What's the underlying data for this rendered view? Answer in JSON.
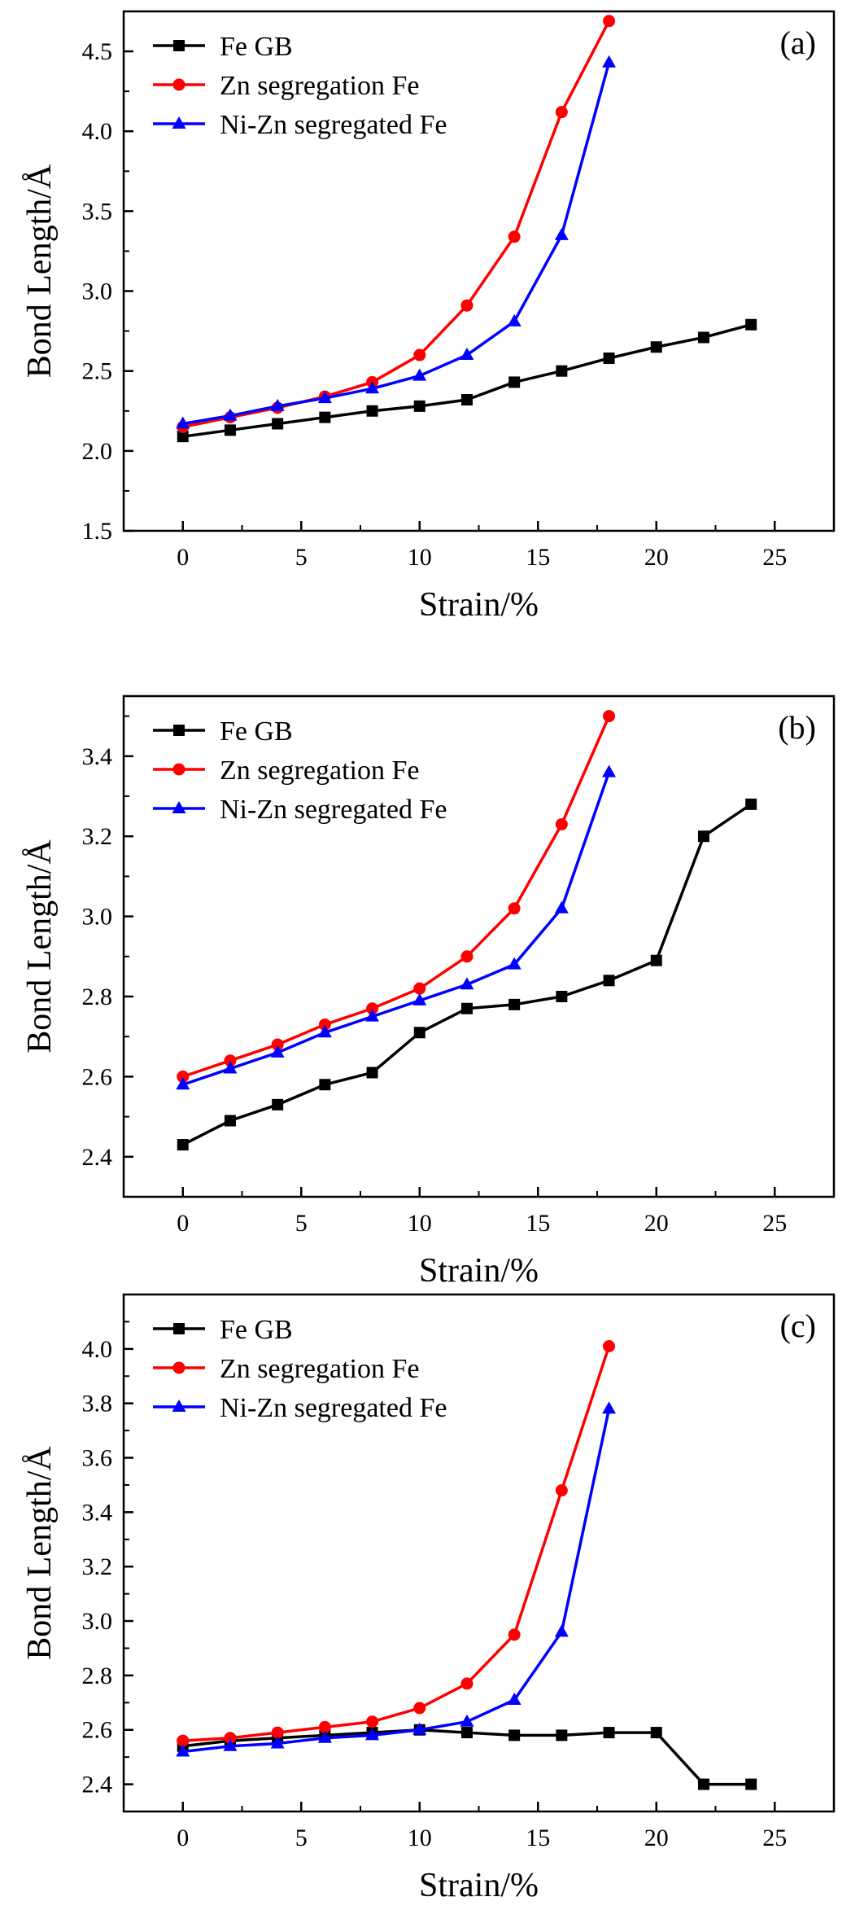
{
  "colors": {
    "fe_gb": "#000000",
    "zn_seg": "#ff0000",
    "nizn_seg": "#0000ff",
    "axis": "#000000",
    "background": "#ffffff"
  },
  "legend": [
    "Fe GB",
    "Zn segregation  Fe",
    "Ni-Zn segregated Fe"
  ],
  "chart_data": [
    {
      "type": "line",
      "panel_label": "(a)",
      "xlabel": "Strain/%",
      "ylabel": "Bond Length/Å",
      "xlim": [
        -2.5,
        27.5
      ],
      "ylim": [
        1.5,
        4.75
      ],
      "xticks": [
        0,
        5,
        10,
        15,
        20,
        25
      ],
      "yticks": [
        1.5,
        2.0,
        2.5,
        3.0,
        3.5,
        4.0,
        4.5
      ],
      "ytick_labels": [
        "1.5",
        "2.0",
        "2.5",
        "3.0",
        "3.5",
        "4.0",
        "4.5"
      ],
      "legend_position": "top-left",
      "series": [
        {
          "name": "Fe GB",
          "marker": "square",
          "color": "#000000",
          "x": [
            0,
            2,
            4,
            6,
            8,
            10,
            12,
            14,
            16,
            18,
            20,
            22,
            24
          ],
          "y": [
            2.09,
            2.13,
            2.17,
            2.21,
            2.25,
            2.28,
            2.32,
            2.43,
            2.5,
            2.58,
            2.65,
            2.71,
            2.79
          ]
        },
        {
          "name": "Zn segregation  Fe",
          "marker": "circle",
          "color": "#ff0000",
          "x": [
            0,
            2,
            4,
            6,
            8,
            10,
            12,
            14,
            16,
            18
          ],
          "y": [
            2.15,
            2.21,
            2.27,
            2.34,
            2.43,
            2.6,
            2.91,
            3.34,
            4.12,
            4.69
          ]
        },
        {
          "name": "Ni-Zn segregated Fe",
          "marker": "triangle",
          "color": "#0000ff",
          "x": [
            0,
            2,
            4,
            6,
            8,
            10,
            12,
            14,
            16,
            18
          ],
          "y": [
            2.17,
            2.22,
            2.28,
            2.33,
            2.39,
            2.47,
            2.6,
            2.81,
            3.35,
            4.43
          ]
        }
      ]
    },
    {
      "type": "line",
      "panel_label": "(b)",
      "xlabel": "Strain/%",
      "ylabel": "Bond Length/Å",
      "xlim": [
        -2.5,
        27.5
      ],
      "ylim": [
        2.3,
        3.55
      ],
      "xticks": [
        0,
        5,
        10,
        15,
        20,
        25
      ],
      "yticks": [
        2.4,
        2.6,
        2.8,
        3.0,
        3.2,
        3.4
      ],
      "ytick_labels": [
        "2.4",
        "2.6",
        "2.8",
        "3.0",
        "3.2",
        "3.4"
      ],
      "legend_position": "top-left",
      "series": [
        {
          "name": "Fe GB",
          "marker": "square",
          "color": "#000000",
          "x": [
            0,
            2,
            4,
            6,
            8,
            10,
            12,
            14,
            16,
            18,
            20,
            22,
            24
          ],
          "y": [
            2.43,
            2.49,
            2.53,
            2.58,
            2.61,
            2.71,
            2.77,
            2.78,
            2.8,
            2.84,
            2.89,
            3.2,
            3.28
          ]
        },
        {
          "name": "Zn segregation  Fe",
          "marker": "circle",
          "color": "#ff0000",
          "x": [
            0,
            2,
            4,
            6,
            8,
            10,
            12,
            14,
            16,
            18
          ],
          "y": [
            2.6,
            2.64,
            2.68,
            2.73,
            2.77,
            2.82,
            2.9,
            3.02,
            3.23,
            3.5
          ]
        },
        {
          "name": "Ni-Zn segregated Fe",
          "marker": "triangle",
          "color": "#0000ff",
          "x": [
            0,
            2,
            4,
            6,
            8,
            10,
            12,
            14,
            16,
            18
          ],
          "y": [
            2.58,
            2.62,
            2.66,
            2.71,
            2.75,
            2.79,
            2.83,
            2.88,
            3.02,
            3.36
          ]
        }
      ]
    },
    {
      "type": "line",
      "panel_label": "(c)",
      "xlabel": "Strain/%",
      "ylabel": "Bond Length/Å",
      "xlim": [
        -2.5,
        27.5
      ],
      "ylim": [
        2.3,
        4.2
      ],
      "xticks": [
        0,
        5,
        10,
        15,
        20,
        25
      ],
      "yticks": [
        2.4,
        2.6,
        2.8,
        3.0,
        3.2,
        3.4,
        3.6,
        3.8,
        4.0
      ],
      "ytick_labels": [
        "2.4",
        "2.6",
        "2.8",
        "3.0",
        "3.2",
        "3.4",
        "3.6",
        "3.8",
        "4.0"
      ],
      "legend_position": "top-left",
      "series": [
        {
          "name": "Fe GB",
          "marker": "square",
          "color": "#000000",
          "x": [
            0,
            2,
            4,
            6,
            8,
            10,
            12,
            14,
            16,
            18,
            20,
            22,
            24
          ],
          "y": [
            2.54,
            2.56,
            2.57,
            2.58,
            2.59,
            2.6,
            2.59,
            2.58,
            2.58,
            2.59,
            2.59,
            2.4,
            2.4
          ]
        },
        {
          "name": "Zn segregation  Fe",
          "marker": "circle",
          "color": "#ff0000",
          "x": [
            0,
            2,
            4,
            6,
            8,
            10,
            12,
            14,
            16,
            18
          ],
          "y": [
            2.56,
            2.57,
            2.59,
            2.61,
            2.63,
            2.68,
            2.77,
            2.95,
            3.48,
            4.01
          ]
        },
        {
          "name": "Ni-Zn segregated Fe",
          "marker": "triangle",
          "color": "#0000ff",
          "x": [
            0,
            2,
            4,
            6,
            8,
            10,
            12,
            14,
            16,
            18
          ],
          "y": [
            2.52,
            2.54,
            2.55,
            2.57,
            2.58,
            2.6,
            2.63,
            2.71,
            2.96,
            3.78
          ]
        }
      ]
    }
  ]
}
